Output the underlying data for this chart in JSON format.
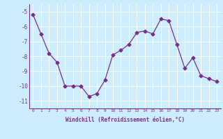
{
  "x": [
    0,
    1,
    2,
    3,
    4,
    5,
    6,
    7,
    8,
    9,
    10,
    11,
    12,
    13,
    14,
    15,
    16,
    17,
    18,
    19,
    20,
    21,
    22,
    23
  ],
  "y": [
    -5.2,
    -6.5,
    -7.8,
    -8.4,
    -10.0,
    -10.0,
    -10.0,
    -10.7,
    -10.5,
    -9.6,
    -7.9,
    -7.6,
    -7.2,
    -6.4,
    -6.3,
    -6.5,
    -5.5,
    -5.6,
    -7.2,
    -8.8,
    -8.1,
    -9.3,
    -9.5,
    -9.7
  ],
  "line_color": "#7b2d8b",
  "marker": "D",
  "markersize": 2.5,
  "bg_color": "#cceeff",
  "grid_color": "#ffffff",
  "xlabel": "Windchill (Refroidissement éolien,°C)",
  "xlabel_color": "#7b2d8b",
  "tick_color": "#7b2d8b",
  "ylim": [
    -11.5,
    -4.5
  ],
  "xlim": [
    -0.5,
    23.5
  ],
  "yticks": [
    -11,
    -10,
    -9,
    -8,
    -7,
    -6,
    -5
  ],
  "xticks": [
    0,
    1,
    2,
    3,
    4,
    5,
    6,
    7,
    8,
    9,
    10,
    11,
    12,
    13,
    14,
    15,
    16,
    17,
    18,
    19,
    20,
    21,
    22,
    23
  ]
}
